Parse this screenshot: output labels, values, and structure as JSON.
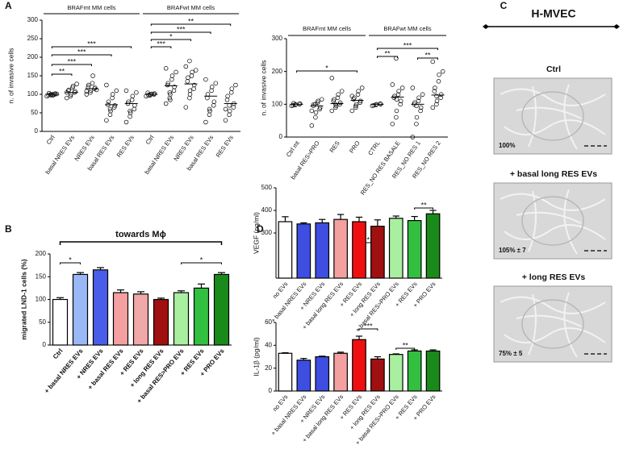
{
  "chart_data": [
    {
      "type": "strip",
      "panel": "A",
      "ylabel": "n. of invasive cells",
      "groups": [
        "BRAFmt MM cells",
        "BRAFwt MM cells"
      ],
      "categories": [
        "Ctrl",
        "basal NRES EVs",
        "NRES EVs",
        "basal RES EVs",
        "RES EVs",
        "Ctrl",
        "basal NRES EVs",
        "NRES EVs",
        "basal RES EVs",
        "RES EVs"
      ],
      "points": [
        [
          95,
          98,
          100,
          100,
          102,
          98,
          103,
          97,
          100,
          101
        ],
        [
          90,
          95,
          100,
          105,
          108,
          110,
          112,
          118,
          122,
          128,
          105
        ],
        [
          100,
          105,
          110,
          115,
          118,
          120,
          125,
          130,
          150,
          112,
          108
        ],
        [
          30,
          45,
          55,
          65,
          70,
          72,
          80,
          90,
          100,
          110,
          125,
          60
        ],
        [
          25,
          40,
          50,
          60,
          70,
          75,
          80,
          85,
          95,
          105,
          110,
          55
        ],
        [
          95,
          97,
          100,
          100,
          102,
          104,
          98,
          101
        ],
        [
          75,
          90,
          100,
          110,
          120,
          125,
          130,
          140,
          150,
          160,
          170,
          105,
          85
        ],
        [
          65,
          90,
          100,
          115,
          125,
          135,
          145,
          150,
          160,
          165,
          175,
          190,
          110
        ],
        [
          25,
          45,
          55,
          70,
          80,
          90,
          100,
          110,
          120,
          130,
          140,
          60
        ],
        [
          30,
          45,
          55,
          65,
          75,
          85,
          95,
          105,
          115,
          125,
          60,
          70
        ]
      ],
      "medians": [
        100,
        105,
        115,
        72,
        75,
        100,
        123,
        128,
        95,
        75
      ],
      "ylim": [
        0,
        300
      ],
      "yticks": [
        0,
        50,
        100,
        150,
        200,
        250,
        300
      ],
      "annotations": [
        "***",
        "***",
        "***",
        "**",
        "**",
        "***",
        "*",
        "***"
      ]
    },
    {
      "type": "strip",
      "ylabel": "n. of invasive cells",
      "groups": [
        "BRAFmt MM cells",
        "BRAFwt MM cells"
      ],
      "categories": [
        "Ctrl mt",
        "basal RES>PRO",
        "RES",
        "PRO",
        "CTRL",
        "RES_NO RES BASALE",
        "RES_NO RES 1",
        "RES_NO RES 2"
      ],
      "points": [
        [
          95,
          98,
          100,
          100,
          102,
          97,
          103
        ],
        [
          35,
          60,
          75,
          85,
          90,
          95,
          100,
          105,
          110,
          115,
          80,
          100
        ],
        [
          80,
          90,
          95,
          100,
          105,
          110,
          115,
          120,
          130,
          140,
          180,
          100
        ],
        [
          80,
          90,
          100,
          105,
          110,
          115,
          120,
          130,
          140,
          150,
          125,
          95
        ],
        [
          95,
          98,
          100,
          102,
          100,
          97
        ],
        [
          40,
          60,
          80,
          100,
          110,
          120,
          125,
          130,
          140,
          150,
          160,
          240,
          115
        ],
        [
          0,
          40,
          60,
          80,
          90,
          100,
          105,
          110,
          120,
          130,
          150,
          95
        ],
        [
          90,
          100,
          110,
          120,
          130,
          140,
          150,
          170,
          190,
          200,
          230,
          125
        ]
      ],
      "medians": [
        100,
        95,
        102,
        112,
        100,
        122,
        100,
        128
      ],
      "ylim": [
        0,
        300
      ],
      "yticks": [
        0,
        100,
        200,
        300
      ],
      "annotations": [
        "*",
        "***",
        "**",
        "**"
      ]
    },
    {
      "type": "bar",
      "panel": "B",
      "title": "towards Mϕ",
      "ylabel": "migrated LND-1 cells (%)",
      "categories": [
        "Ctrl",
        "+ basal NRES EVs",
        "+ NRES EVs",
        "+ basal RES EVs",
        "+ RES EVs",
        "+ long RES EVs",
        "+ basal RES>PRO EVs",
        "+ RES EVs",
        "+ PRO EVs"
      ],
      "values": [
        100,
        155,
        165,
        115,
        112,
        100,
        115,
        125,
        155
      ],
      "errors": [
        4,
        4,
        5,
        6,
        5,
        3,
        4,
        9,
        4
      ],
      "colors": [
        "#ffffff",
        "#9ab8f5",
        "#4a5de8",
        "#f4a0a0",
        "#f0a8a8",
        "#a01010",
        "#a8f0a0",
        "#33c040",
        "#1a8a1a"
      ],
      "ylim": [
        0,
        200
      ],
      "yticks": [
        0,
        50,
        100,
        150,
        200
      ],
      "annotations": [
        "*",
        "*"
      ]
    },
    {
      "type": "bar",
      "panel": "D",
      "ylabel": "VEGF (pg/ml)",
      "categories": [
        "no EVs",
        "+ basal NRES EVs",
        "+ NRES EVs",
        "+ basal long RES EVs",
        "+ RES EVs",
        "+ long RES EVs",
        "+ basal RES>PRO EVs",
        "+ RES EVs",
        "+ PRO EVs"
      ],
      "values": [
        350,
        340,
        345,
        360,
        350,
        330,
        365,
        355,
        385
      ],
      "errors": [
        22,
        5,
        15,
        22,
        20,
        28,
        10,
        18,
        15
      ],
      "colors": [
        "#ffffff",
        "#3d4ee0",
        "#3d4ee0",
        "#f4a0a0",
        "#ee1010",
        "#a01010",
        "#a8f0a0",
        "#33c040",
        "#1a8a1a"
      ],
      "ylim": [
        100,
        500
      ],
      "yticks": [
        300,
        400,
        500
      ],
      "annotations": [
        "*",
        "**"
      ]
    },
    {
      "type": "bar",
      "ylabel": "IL-1β (pg/ml)",
      "categories": [
        "no EVs",
        "+ basal NRES EVs",
        "+ NRES EVs",
        "+ basal long RES EVs",
        "+ RES EVs",
        "+ long RES EVs",
        "+ basal RES>PRO EVs",
        "+ RES EVs",
        "+ PRO EVs"
      ],
      "values": [
        33,
        27,
        30,
        33,
        45,
        28,
        32,
        35,
        35
      ],
      "errors": [
        0.5,
        1.5,
        0.5,
        1,
        3,
        2,
        0.5,
        1,
        1
      ],
      "colors": [
        "#ffffff",
        "#3d4ee0",
        "#3d4ee0",
        "#f4a0a0",
        "#ee1010",
        "#a01010",
        "#a8f0a0",
        "#33c040",
        "#1a8a1a"
      ],
      "ylim": [
        0,
        60
      ],
      "yticks": [
        0,
        20,
        40,
        60
      ],
      "annotations": [
        "***",
        "**"
      ]
    }
  ],
  "panel_c": {
    "panel": "C",
    "title": "H-MVEC",
    "images": [
      {
        "label": "Ctrl",
        "value_text": "100%"
      },
      {
        "label": "+ basal long RES EVs",
        "value_text": "105% ± 7"
      },
      {
        "label": "+ long RES EVs",
        "value_text": "75% ± 5"
      }
    ]
  }
}
